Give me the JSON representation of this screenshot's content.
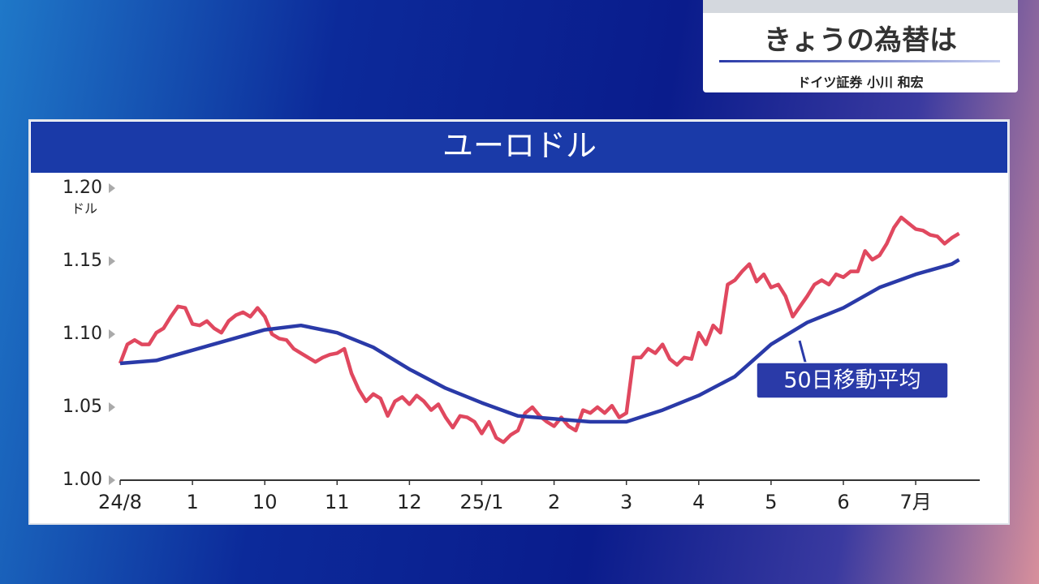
{
  "header": {
    "title": "きょうの為替は",
    "subtitle": "ドイツ証券 小川 和宏"
  },
  "chart_data": {
    "type": "line",
    "title": "ユーロドル",
    "y_label": "ドル",
    "xlim": [
      0,
      11.8
    ],
    "xticks": [
      {
        "value": 0,
        "label": "24/8"
      },
      1,
      {
        "value": 2,
        "label": "10"
      },
      {
        "value": 3,
        "label": "11"
      },
      {
        "value": 4,
        "label": "12"
      },
      {
        "value": 5,
        "label": "25/1"
      },
      {
        "value": 6,
        "label": "2"
      },
      {
        "value": 7,
        "label": "3"
      },
      {
        "value": 8,
        "label": "4"
      },
      {
        "value": 9,
        "label": "5"
      },
      {
        "value": 10,
        "label": "6"
      },
      {
        "value": 11,
        "label": "7月"
      }
    ],
    "ylim": [
      1.0,
      1.2
    ],
    "yticks": [
      {
        "value": 1.2,
        "label": "1.20"
      },
      1.15,
      {
        "value": 1.1,
        "label": "1.10"
      },
      1.05,
      {
        "value": 1.0,
        "label": "1.00"
      }
    ],
    "grid": false,
    "series": [
      {
        "color": "#e0485f",
        "x": [
          0,
          0.1,
          0.2,
          0.3,
          0.4,
          0.5,
          0.6,
          0.7,
          0.8,
          0.9,
          1,
          1.1,
          1.2,
          1.3,
          1.4,
          1.5,
          1.6,
          1.7,
          1.8,
          1.9,
          2,
          2.1,
          2.2,
          2.3,
          2.4,
          2.5,
          2.6,
          2.7,
          2.8,
          2.9,
          3,
          3.1,
          3.2,
          3.3,
          3.4,
          3.5,
          3.6,
          3.7,
          3.8,
          3.9,
          4,
          4.1,
          4.2,
          4.3,
          4.4,
          4.5,
          4.6,
          4.7,
          4.8,
          4.9,
          5,
          5.1,
          5.2,
          5.3,
          5.4,
          5.5,
          5.6,
          5.7,
          5.8,
          5.9,
          6,
          6.1,
          6.2,
          6.3,
          6.4,
          6.5,
          6.6,
          6.7,
          6.8,
          6.9,
          7,
          7.1,
          7.2,
          7.3,
          7.4,
          7.5,
          7.6,
          7.7,
          7.8,
          7.9,
          8,
          8.1,
          8.2,
          8.3,
          8.4,
          8.5,
          8.6,
          8.7,
          8.8,
          8.9,
          9,
          9.1,
          9.2,
          9.3,
          9.4,
          9.5,
          9.6,
          9.7,
          9.8,
          9.9,
          10,
          10.1,
          10.2,
          10.3,
          10.4,
          10.5,
          10.6,
          10.7,
          10.8,
          10.9,
          11,
          11.1,
          11.2,
          11.3,
          11.4,
          11.5,
          11.6
        ],
        "values": [
          1.08,
          1.093,
          1.096,
          1.093,
          1.093,
          1.101,
          1.104,
          1.112,
          1.119,
          1.118,
          1.107,
          1.106,
          1.109,
          1.104,
          1.101,
          1.109,
          1.113,
          1.115,
          1.112,
          1.118,
          1.112,
          1.1,
          1.097,
          1.096,
          1.09,
          1.087,
          1.084,
          1.081,
          1.084,
          1.086,
          1.087,
          1.09,
          1.073,
          1.062,
          1.054,
          1.059,
          1.056,
          1.044,
          1.054,
          1.057,
          1.052,
          1.058,
          1.054,
          1.048,
          1.052,
          1.043,
          1.036,
          1.044,
          1.043,
          1.04,
          1.032,
          1.04,
          1.029,
          1.026,
          1.031,
          1.034,
          1.046,
          1.05,
          1.044,
          1.04,
          1.037,
          1.043,
          1.037,
          1.034,
          1.048,
          1.046,
          1.05,
          1.046,
          1.051,
          1.043,
          1.046,
          1.084,
          1.084,
          1.09,
          1.087,
          1.093,
          1.083,
          1.079,
          1.084,
          1.083,
          1.101,
          1.093,
          1.106,
          1.101,
          1.134,
          1.137,
          1.143,
          1.148,
          1.136,
          1.141,
          1.132,
          1.134,
          1.126,
          1.112,
          1.119,
          1.126,
          1.134,
          1.137,
          1.134,
          1.141,
          1.139,
          1.143,
          1.143,
          1.157,
          1.151,
          1.154,
          1.162,
          1.173,
          1.18,
          1.176,
          1.172,
          1.171,
          1.168,
          1.167,
          1.162,
          1.166,
          1.169
        ]
      },
      {
        "name": "50日移動平均",
        "color": "#2a3aa8",
        "x": [
          0,
          0.5,
          1,
          1.5,
          2,
          2.5,
          3,
          3.5,
          4,
          4.5,
          5,
          5.5,
          6,
          6.5,
          7,
          7.5,
          8,
          8.5,
          9,
          9.5,
          10,
          10.5,
          11,
          11.5,
          11.6
        ],
        "values": [
          1.08,
          1.082,
          1.089,
          1.096,
          1.103,
          1.106,
          1.101,
          1.091,
          1.076,
          1.063,
          1.053,
          1.044,
          1.042,
          1.04,
          1.04,
          1.048,
          1.058,
          1.071,
          1.093,
          1.108,
          1.118,
          1.132,
          1.141,
          1.148,
          1.151
        ]
      }
    ]
  }
}
